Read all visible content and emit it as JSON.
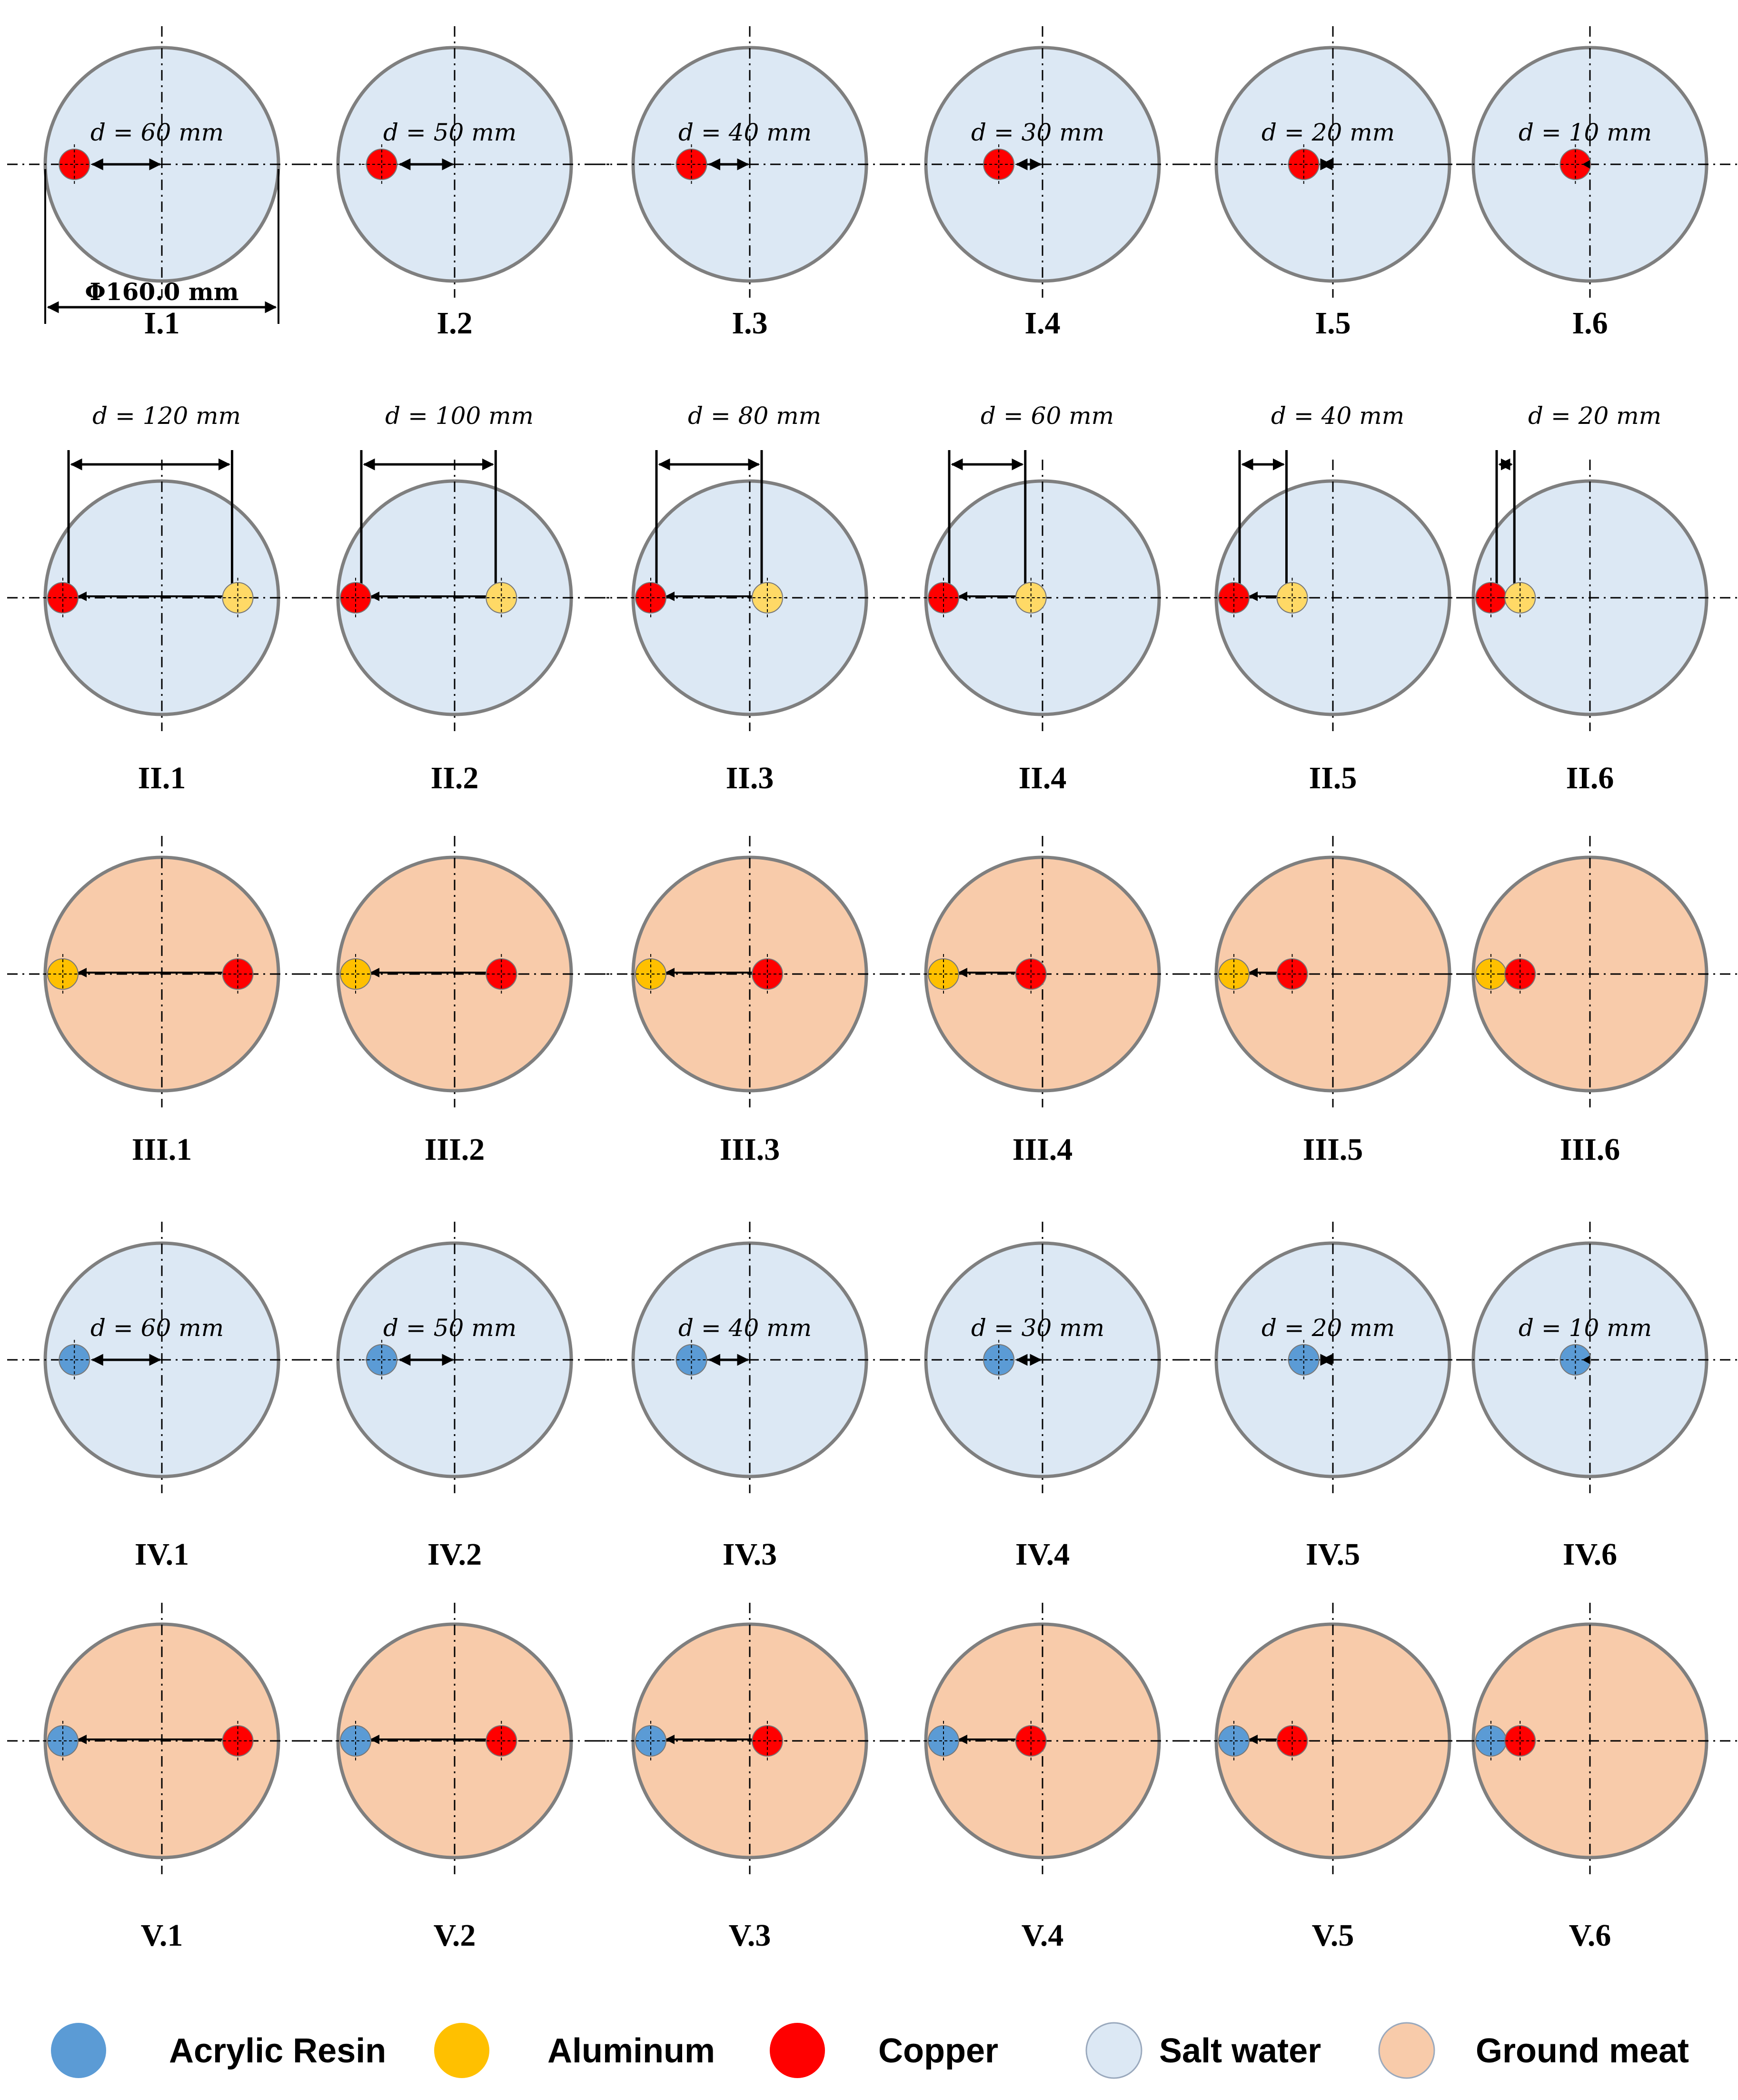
{
  "colors": {
    "salt_water": "#dce8f4",
    "ground_meat": "#f8cbaa",
    "acrylic_resin": "#5b9bd5",
    "aluminum": "#ffc000",
    "copper": "#ff0000",
    "aluminum_light": "#ffd966",
    "outline": "#7f7f7f"
  },
  "diameter_label": "Φ160.0 mm",
  "rows": [
    {
      "id": "I",
      "medium": "salt_water",
      "layout": "single",
      "electrode": "copper",
      "panels": [
        {
          "label": "I.1",
          "d_label": "d = 60 mm",
          "d_mm": 60
        },
        {
          "label": "I.2",
          "d_label": "d = 50 mm",
          "d_mm": 50
        },
        {
          "label": "I.3",
          "d_label": "d = 40 mm",
          "d_mm": 40
        },
        {
          "label": "I.4",
          "d_label": "d = 30 mm",
          "d_mm": 30
        },
        {
          "label": "I.5",
          "d_label": "d = 20 mm",
          "d_mm": 20
        },
        {
          "label": "I.6",
          "d_label": "d = 10 mm",
          "d_mm": 10
        }
      ]
    },
    {
      "id": "II",
      "medium": "salt_water",
      "layout": "pair",
      "left": "copper",
      "right": "aluminum_light",
      "panels": [
        {
          "label": "II.1",
          "d_label": "d = 120 mm",
          "d_mm": 120
        },
        {
          "label": "II.2",
          "d_label": "d = 100 mm",
          "d_mm": 100
        },
        {
          "label": "II.3",
          "d_label": "d = 80 mm",
          "d_mm": 80
        },
        {
          "label": "II.4",
          "d_label": "d = 60 mm",
          "d_mm": 60
        },
        {
          "label": "II.5",
          "d_label": "d = 40 mm",
          "d_mm": 40
        },
        {
          "label": "II.6",
          "d_label": "d = 20 mm",
          "d_mm": 20
        }
      ]
    },
    {
      "id": "III",
      "medium": "ground_meat",
      "layout": "pair",
      "left": "aluminum",
      "right": "copper",
      "panels": [
        {
          "label": "III.1",
          "d_label": "",
          "d_mm": 120
        },
        {
          "label": "III.2",
          "d_label": "",
          "d_mm": 100
        },
        {
          "label": "III.3",
          "d_label": "",
          "d_mm": 80
        },
        {
          "label": "III.4",
          "d_label": "",
          "d_mm": 60
        },
        {
          "label": "III.5",
          "d_label": "",
          "d_mm": 40
        },
        {
          "label": "III.6",
          "d_label": "",
          "d_mm": 20
        }
      ]
    },
    {
      "id": "IV",
      "medium": "salt_water",
      "layout": "single",
      "electrode": "acrylic_resin",
      "panels": [
        {
          "label": "IV.1",
          "d_label": "d = 60 mm",
          "d_mm": 60
        },
        {
          "label": "IV.2",
          "d_label": "d = 50 mm",
          "d_mm": 50
        },
        {
          "label": "IV.3",
          "d_label": "d = 40 mm",
          "d_mm": 40
        },
        {
          "label": "IV.4",
          "d_label": "d = 30 mm",
          "d_mm": 30
        },
        {
          "label": "IV.5",
          "d_label": "d = 20 mm",
          "d_mm": 20
        },
        {
          "label": "IV.6",
          "d_label": "d = 10 mm",
          "d_mm": 10
        }
      ]
    },
    {
      "id": "V",
      "medium": "ground_meat",
      "layout": "pair",
      "left": "acrylic_resin",
      "right": "copper",
      "panels": [
        {
          "label": "V.1",
          "d_label": "",
          "d_mm": 120
        },
        {
          "label": "V.2",
          "d_label": "",
          "d_mm": 100
        },
        {
          "label": "V.3",
          "d_label": "",
          "d_mm": 80
        },
        {
          "label": "V.4",
          "d_label": "",
          "d_mm": 60
        },
        {
          "label": "V.5",
          "d_label": "",
          "d_mm": 40
        },
        {
          "label": "V.6",
          "d_label": "",
          "d_mm": 20
        }
      ]
    }
  ],
  "legend": [
    {
      "key": "acrylic_resin",
      "label": "Acrylic Resin"
    },
    {
      "key": "aluminum",
      "label": "Aluminum"
    },
    {
      "key": "copper",
      "label": "Copper"
    },
    {
      "key": "salt_water",
      "label": "Salt water"
    },
    {
      "key": "ground_meat",
      "label": "Ground meat"
    }
  ]
}
